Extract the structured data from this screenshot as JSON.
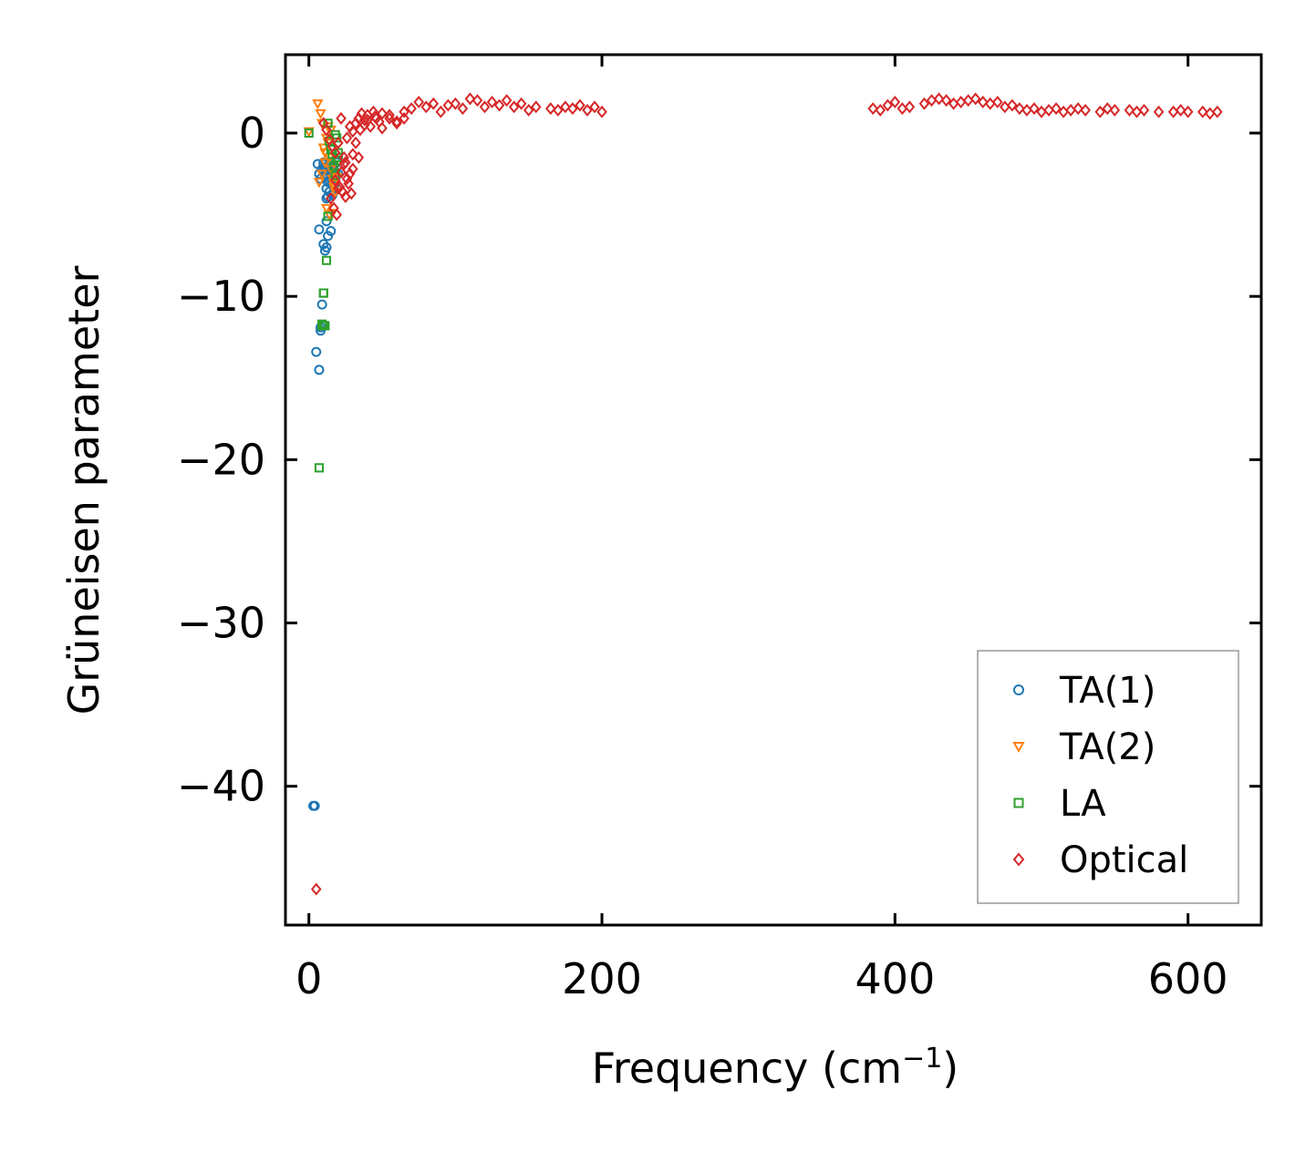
{
  "chart_data": {
    "type": "scatter",
    "title": "",
    "xlabel": "Frequency (cm",
    "xlabel_sup": "−1",
    "xlabel_close": ")",
    "ylabel": "Grüneisen parameter",
    "xlim": [
      -16,
      650
    ],
    "ylim": [
      -48.5,
      4.8
    ],
    "xticks": [
      0,
      200,
      400,
      600
    ],
    "xtick_labels": [
      "0",
      "200",
      "400",
      "600"
    ],
    "yticks": [
      0,
      -10,
      -20,
      -30,
      -40
    ],
    "ytick_labels": [
      "0",
      "−10",
      "−20",
      "−30",
      "−40"
    ],
    "grid": false,
    "legend_position": "bottom-right",
    "series": [
      {
        "name": "TA(1)",
        "marker": "circle",
        "color": "#1f77b4",
        "x": [
          3,
          6,
          7,
          8,
          9,
          10,
          11,
          12,
          13,
          14,
          14,
          15,
          16,
          16,
          17,
          18,
          19,
          20,
          12,
          13,
          15,
          17,
          10,
          11,
          12,
          13,
          14,
          15,
          16,
          17,
          18,
          12,
          14,
          16,
          7,
          10,
          12,
          13,
          15,
          11,
          12,
          9,
          8,
          7,
          5,
          8,
          4
        ],
        "y": [
          -41.2,
          -1.9,
          -2.5,
          -2.8,
          -2.2,
          -1.8,
          -2.6,
          -2.3,
          -2.0,
          -2.9,
          -2.4,
          -1.9,
          -2.2,
          -3.1,
          -2.0,
          -2.4,
          -1.8,
          -2.5,
          -3.4,
          -3.9,
          -2.7,
          -3.3,
          -1.9,
          -2.1,
          -2.6,
          -3.0,
          -2.3,
          -2.8,
          -2.1,
          -2.4,
          -2.7,
          -4.0,
          -3.6,
          -3.8,
          -5.9,
          -6.8,
          -5.4,
          -6.3,
          -6.0,
          -7.2,
          -7.0,
          -10.5,
          -12.1,
          -14.5,
          -13.4,
          -11.9,
          -41.2
        ]
      },
      {
        "name": "TA(2)",
        "marker": "triangle-down",
        "color": "#ff7f0e",
        "x": [
          0,
          6,
          8,
          9,
          10,
          11,
          12,
          13,
          14,
          15,
          16,
          17,
          18,
          12,
          14,
          16,
          17,
          19,
          7,
          9,
          11,
          13,
          15
        ],
        "y": [
          0.1,
          1.8,
          1.2,
          0.6,
          -0.9,
          -1.2,
          -0.3,
          0.4,
          -1.5,
          -2.2,
          -2.8,
          -3.1,
          -3.6,
          -4.6,
          -5.0,
          -4.9,
          -3.3,
          -2.7,
          -3.0,
          -2.5,
          -1.8,
          -0.6,
          0.2
        ]
      },
      {
        "name": "LA",
        "marker": "square",
        "color": "#2ca02c",
        "x": [
          0,
          7,
          9,
          10,
          11,
          12,
          13,
          14,
          15,
          16,
          17,
          18,
          19,
          20,
          18,
          19,
          20,
          13,
          10,
          9,
          10
        ],
        "y": [
          0.0,
          -20.5,
          -11.8,
          -9.8,
          -11.8,
          -7.8,
          0.6,
          -0.5,
          -1.0,
          -1.3,
          -2.0,
          -0.1,
          -0.3,
          -1.2,
          -2.6,
          -1.7,
          -1.5,
          -5.1,
          -9.8,
          -11.7,
          -11.8
        ]
      },
      {
        "name": "Optical",
        "marker": "diamond",
        "color": "#d62728",
        "x": [
          5,
          10,
          12,
          14,
          16,
          18,
          20,
          22,
          24,
          26,
          28,
          30,
          32,
          34,
          36,
          38,
          40,
          42,
          44,
          46,
          48,
          50,
          55,
          60,
          65,
          70,
          75,
          80,
          85,
          90,
          95,
          100,
          105,
          110,
          115,
          120,
          125,
          130,
          135,
          140,
          145,
          150,
          155,
          165,
          170,
          175,
          180,
          185,
          190,
          195,
          200,
          25,
          28,
          30,
          32,
          35,
          38,
          40,
          45,
          50,
          55,
          60,
          65,
          18,
          20,
          22,
          24,
          26,
          30,
          34,
          15,
          17,
          19,
          21,
          23,
          25,
          27,
          29,
          385,
          390,
          395,
          400,
          405,
          410,
          420,
          425,
          430,
          435,
          440,
          445,
          450,
          455,
          460,
          465,
          470,
          475,
          480,
          485,
          490,
          495,
          500,
          505,
          510,
          515,
          520,
          525,
          530,
          540,
          545,
          550,
          560,
          565,
          570,
          580,
          590,
          595,
          600,
          610,
          615,
          620
        ],
        "y": [
          -46.3,
          0.6,
          0.2,
          -0.4,
          -0.8,
          -1.2,
          -0.6,
          0.9,
          -1.5,
          -0.3,
          0.4,
          0.1,
          0.6,
          0.9,
          1.2,
          0.8,
          1.1,
          0.4,
          1.3,
          0.9,
          0.7,
          1.2,
          0.9,
          0.6,
          1.3,
          1.5,
          1.9,
          1.6,
          1.8,
          1.3,
          1.7,
          1.8,
          1.5,
          2.1,
          2.0,
          1.6,
          1.9,
          1.7,
          2.0,
          1.6,
          1.8,
          1.4,
          1.6,
          1.5,
          1.4,
          1.6,
          1.5,
          1.7,
          1.4,
          1.6,
          1.3,
          -1.8,
          -2.5,
          -1.3,
          -0.6,
          0.2,
          0.5,
          0.8,
          1.0,
          0.3,
          1.1,
          0.7,
          0.9,
          -2.9,
          -3.4,
          -2.4,
          -1.9,
          -2.8,
          -2.2,
          -1.5,
          -4.0,
          -4.6,
          -5.0,
          -3.3,
          -3.6,
          -3.9,
          -3.1,
          -3.7,
          1.5,
          1.4,
          1.7,
          1.9,
          1.5,
          1.6,
          1.8,
          2.0,
          2.1,
          2.0,
          1.8,
          1.9,
          2.0,
          2.1,
          1.9,
          1.8,
          1.9,
          1.6,
          1.7,
          1.5,
          1.4,
          1.5,
          1.3,
          1.4,
          1.5,
          1.3,
          1.4,
          1.5,
          1.4,
          1.3,
          1.5,
          1.4,
          1.4,
          1.3,
          1.4,
          1.3,
          1.3,
          1.4,
          1.3,
          1.3,
          1.2,
          1.3
        ]
      }
    ]
  }
}
